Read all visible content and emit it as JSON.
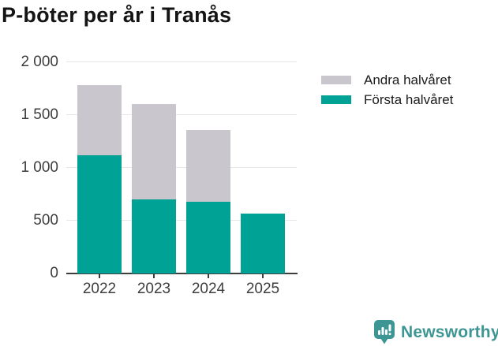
{
  "title": "P-böter per år i Tranås",
  "chart_data": {
    "type": "bar",
    "stacked": true,
    "categories": [
      "2022",
      "2023",
      "2024",
      "2025"
    ],
    "series": [
      {
        "name": "Första halvåret",
        "color": "#00a296",
        "values": [
          1120,
          700,
          680,
          565
        ]
      },
      {
        "name": "Andra halvåret",
        "color": "#c9c6ce",
        "values": [
          665,
          905,
          680,
          0
        ]
      }
    ],
    "stack_totals": [
      1785,
      1605,
      1360,
      565
    ],
    "title": "P-böter per år i Tranås",
    "xlabel": "",
    "ylabel": "",
    "ylim": [
      0,
      2000
    ],
    "yticks": [
      0,
      500,
      1000,
      1500,
      2000
    ],
    "ytick_labels": [
      "0",
      "500",
      "1 000",
      "1 500",
      "2 000"
    ],
    "grid": "horizontal",
    "legend_position": "right"
  },
  "legend": {
    "items": [
      {
        "label": "Andra halvåret",
        "color": "#c9c6ce",
        "key": "second-half"
      },
      {
        "label": "Första halvåret",
        "color": "#00a296",
        "key": "first-half"
      }
    ]
  },
  "footer": {
    "brand": "Newsworthy",
    "brand_color": "#3e9694"
  },
  "colors": {
    "first_half": "#00a296",
    "second_half": "#c9c6ce",
    "axis": "#3d3d3d",
    "grid": "#e7e7e7",
    "title_text": "#141414"
  }
}
